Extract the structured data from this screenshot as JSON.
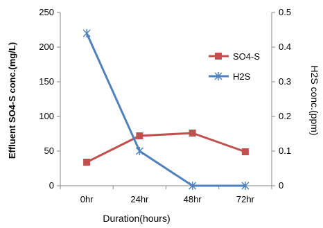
{
  "chart_data": {
    "type": "line",
    "categories": [
      "0hr",
      "24hr",
      "48hr",
      "72hr"
    ],
    "xlabel": "Duration(hours)",
    "ylabel_left": "Effluent SO4-S conc.(mg/L)",
    "ylabel_right": "H2S conc.(ppm)",
    "ylim_left": [
      0,
      250
    ],
    "ylim_right": [
      0,
      0.5
    ],
    "yticks_left": [
      "0",
      "50",
      "100",
      "150",
      "200",
      "250"
    ],
    "yticks_right": [
      "0",
      "0.1",
      "0.2",
      "0.3",
      "0.4",
      "0.5"
    ],
    "grid": false,
    "legend_position": "right",
    "series": [
      {
        "name": "SO4-S",
        "axis": "left",
        "color": "#C0504D",
        "marker": "square",
        "values": [
          34,
          72,
          76,
          49
        ]
      },
      {
        "name": "H2S",
        "axis": "right",
        "color": "#4F81BD",
        "marker": "asterisk",
        "values": [
          0.44,
          0.1,
          0,
          0
        ]
      }
    ]
  }
}
